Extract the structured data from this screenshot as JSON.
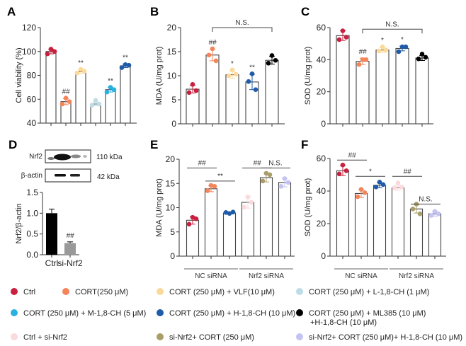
{
  "legend": [
    {
      "key": "ctrl",
      "label": "Ctrl",
      "color": "#c8203f"
    },
    {
      "key": "cort",
      "label": "CORT(250 μM)",
      "color": "#f4845a"
    },
    {
      "key": "vlf",
      "label": "CORT (250 μM) + VLF(10 μM)",
      "color": "#fad99a"
    },
    {
      "key": "l18ch",
      "label": "CORT (250 μM)  + L-1,8-CH (1 μM)",
      "color": "#bcdde6"
    },
    {
      "key": "m18ch",
      "label": "CORT (250 μM)  + M-1,8-CH (5 μM)",
      "color": "#2bb1e0"
    },
    {
      "key": "h18ch",
      "label": "CORT (250 μM)  + H-1,8-CH (10 μM)",
      "color": "#1f5ba8"
    },
    {
      "key": "ml385",
      "label": "CORT (250 μM)  + ML385 (10 μM)",
      "label2": "+H-1,8-CH (10 μM)",
      "color": "#000000"
    },
    {
      "key": "ctrl_si",
      "label": "Ctrl + si-Nrf2",
      "color": "#fadadd"
    },
    {
      "key": "si_cort",
      "label": "si-Nrf2+ CORT (250 μM)",
      "color": "#a99d6a"
    },
    {
      "key": "si_cort_h",
      "label": "si-Nrf2+ CORT (250 μM)+ H-1,8-CH (10 μM)",
      "color": "#c4c3f2"
    }
  ],
  "western_blot": {
    "bands": [
      {
        "name": "Nrf2",
        "size": "110 kDa"
      },
      {
        "name": "β-actin",
        "size": "42 kDa"
      }
    ]
  },
  "chart_data": [
    {
      "panel": "A",
      "type": "bar",
      "title": "",
      "xlabel": "",
      "ylabel": "Cell viability (%)",
      "ylim": [
        40,
        120
      ],
      "yticks": [
        40,
        60,
        80,
        100,
        120
      ],
      "groups": [
        "ctrl",
        "cort",
        "vlf",
        "l18ch",
        "m18ch",
        "h18ch"
      ],
      "values": [
        100,
        58,
        83,
        56,
        68,
        88
      ],
      "error": [
        2,
        2.5,
        1.5,
        1.5,
        2,
        1.5
      ],
      "points": [
        [
          102,
          98,
          100
        ],
        [
          61,
          56,
          58
        ],
        [
          85,
          82,
          83.5
        ],
        [
          59,
          55,
          56
        ],
        [
          70,
          66,
          68
        ],
        [
          89,
          86.5,
          88.5
        ]
      ],
      "annotations": [
        "",
        "##",
        "**",
        "",
        "**",
        "**"
      ],
      "brackets": []
    },
    {
      "panel": "B",
      "type": "bar",
      "title": "",
      "xlabel": "",
      "ylabel": "MDA (U/mg prot)",
      "ylim": [
        0,
        20
      ],
      "yticks": [
        0,
        5,
        10,
        15,
        20
      ],
      "groups": [
        "ctrl",
        "cort",
        "vlf",
        "h18ch",
        "ml385"
      ],
      "values": [
        7.2,
        14.3,
        10.2,
        8.7,
        13.2
      ],
      "error": [
        0.8,
        1.2,
        0.7,
        1.6,
        0.8
      ],
      "points": [
        [
          8.2,
          6.5,
          6.9
        ],
        [
          15.6,
          14.3,
          13.1
        ],
        [
          11.2,
          10.0,
          10.3
        ],
        [
          10.4,
          8.8,
          7.1
        ],
        [
          14.2,
          12.6,
          13.2
        ]
      ],
      "annotations": [
        "",
        "##",
        "*",
        "**",
        ""
      ],
      "brackets": [
        {
          "from": 1,
          "to": 4,
          "label": "N.S.",
          "style": "tick",
          "level": 20
        }
      ]
    },
    {
      "panel": "C",
      "type": "bar",
      "title": "",
      "xlabel": "",
      "ylabel": "SOD (U/mg prot)",
      "ylim": [
        0,
        60
      ],
      "yticks": [
        0,
        20,
        40,
        60
      ],
      "groups": [
        "ctrl",
        "cort",
        "vlf",
        "h18ch",
        "ml385"
      ],
      "values": [
        55,
        39,
        46,
        47,
        41
      ],
      "error": [
        3,
        2,
        1.5,
        1.5,
        1.5
      ],
      "points": [
        [
          58,
          52.5,
          54
        ],
        [
          40,
          37,
          40
        ],
        [
          48,
          45.5,
          46
        ],
        [
          48,
          45,
          48
        ],
        [
          43.5,
          40.5,
          41.5
        ]
      ],
      "annotations": [
        "",
        "##",
        "*",
        "*",
        ""
      ],
      "brackets": [
        {
          "from": 1,
          "to": 4,
          "label": "N.S.",
          "style": "tick",
          "level": 59
        }
      ]
    },
    {
      "panel": "D",
      "type": "bar",
      "title": "",
      "xlabel": "",
      "ylabel": "Nrf2/β-actin",
      "ylim": [
        0,
        1.5
      ],
      "yticks": [
        "0.0",
        "0.5",
        "1.0",
        "1.5"
      ],
      "categories": [
        "Ctrl",
        "si-Nrf2"
      ],
      "values": [
        1.0,
        0.28
      ],
      "error": [
        0.1,
        0.03
      ],
      "bar_colors": [
        "#000000",
        "#999999"
      ],
      "annotations": [
        "",
        "##"
      ]
    },
    {
      "panel": "E",
      "type": "bar",
      "title": "",
      "xlabel": "",
      "ylabel": "MDA (U/mg prot)",
      "ylim": [
        0,
        20
      ],
      "yticks": [
        0,
        5,
        10,
        15,
        20
      ],
      "groups": [
        "ctrl",
        "cort",
        "h18ch",
        "ctrl_si",
        "si_cort",
        "si_cort_h"
      ],
      "values": [
        7.4,
        13.9,
        8.9,
        11.1,
        16.2,
        15.2
      ],
      "error": [
        0.8,
        0.6,
        0.2,
        1.2,
        0.9,
        0.9
      ],
      "points": [
        [
          8.0,
          6.6,
          7.7
        ],
        [
          14.6,
          13.5,
          14.4
        ],
        [
          8.8,
          9.0,
          9.1
        ],
        [
          12.2,
          10.1,
          11.1
        ],
        [
          17.1,
          15.5,
          16.8
        ],
        [
          16.0,
          14.4,
          15.2
        ]
      ],
      "annotations": [
        "",
        "",
        "",
        "",
        "",
        ""
      ],
      "brackets": [
        {
          "from": 0,
          "to": 1,
          "label": "##",
          "style": "line",
          "level": 18.2
        },
        {
          "from": 1,
          "to": 2,
          "label": "**",
          "style": "line",
          "level": 15.5
        },
        {
          "from": 3,
          "to": 4,
          "label": "##",
          "style": "line",
          "level": 18.2
        },
        {
          "from": 4,
          "to": 5,
          "label": "N.S.",
          "style": "line",
          "level": 18.2
        }
      ],
      "group_labels": [
        {
          "label": "NC siRNA",
          "from": 0,
          "to": 2
        },
        {
          "label": "Nrf2 siRNA",
          "from": 3,
          "to": 5
        }
      ]
    },
    {
      "panel": "F",
      "type": "bar",
      "title": "",
      "xlabel": "",
      "ylabel": "SOD (U/mg prot)",
      "ylim": [
        0,
        60
      ],
      "yticks": [
        0,
        20,
        40,
        60
      ],
      "groups": [
        "ctrl",
        "cort",
        "h18ch",
        "ctrl_si",
        "si_cort",
        "si_cort_h"
      ],
      "values": [
        52.5,
        38.5,
        43.5,
        42,
        29,
        26
      ],
      "error": [
        3,
        2.5,
        1.5,
        1.5,
        2.5,
        1.5
      ],
      "points": [
        [
          56,
          50.5,
          52.5
        ],
        [
          41,
          36.5,
          39
        ],
        [
          45.5,
          42.5,
          44
        ],
        [
          45,
          42,
          42.5
        ],
        [
          32,
          29,
          26
        ],
        [
          27.5,
          25,
          26
        ]
      ],
      "annotations": [
        "",
        "",
        "",
        "",
        "",
        ""
      ],
      "brackets": [
        {
          "from": 0,
          "to": 1,
          "label": "##",
          "style": "line",
          "level": 59
        },
        {
          "from": 1,
          "to": 2,
          "label": "*",
          "style": "line",
          "level": 49
        },
        {
          "from": 3,
          "to": 4,
          "label": "##",
          "style": "line",
          "level": 49
        },
        {
          "from": 4,
          "to": 5,
          "label": "N.S.",
          "style": "line",
          "level": 32
        }
      ],
      "group_labels": [
        {
          "label": "NC siRNA",
          "from": 0,
          "to": 2
        },
        {
          "label": "Nrf2 siRNA",
          "from": 3,
          "to": 5
        }
      ]
    }
  ]
}
